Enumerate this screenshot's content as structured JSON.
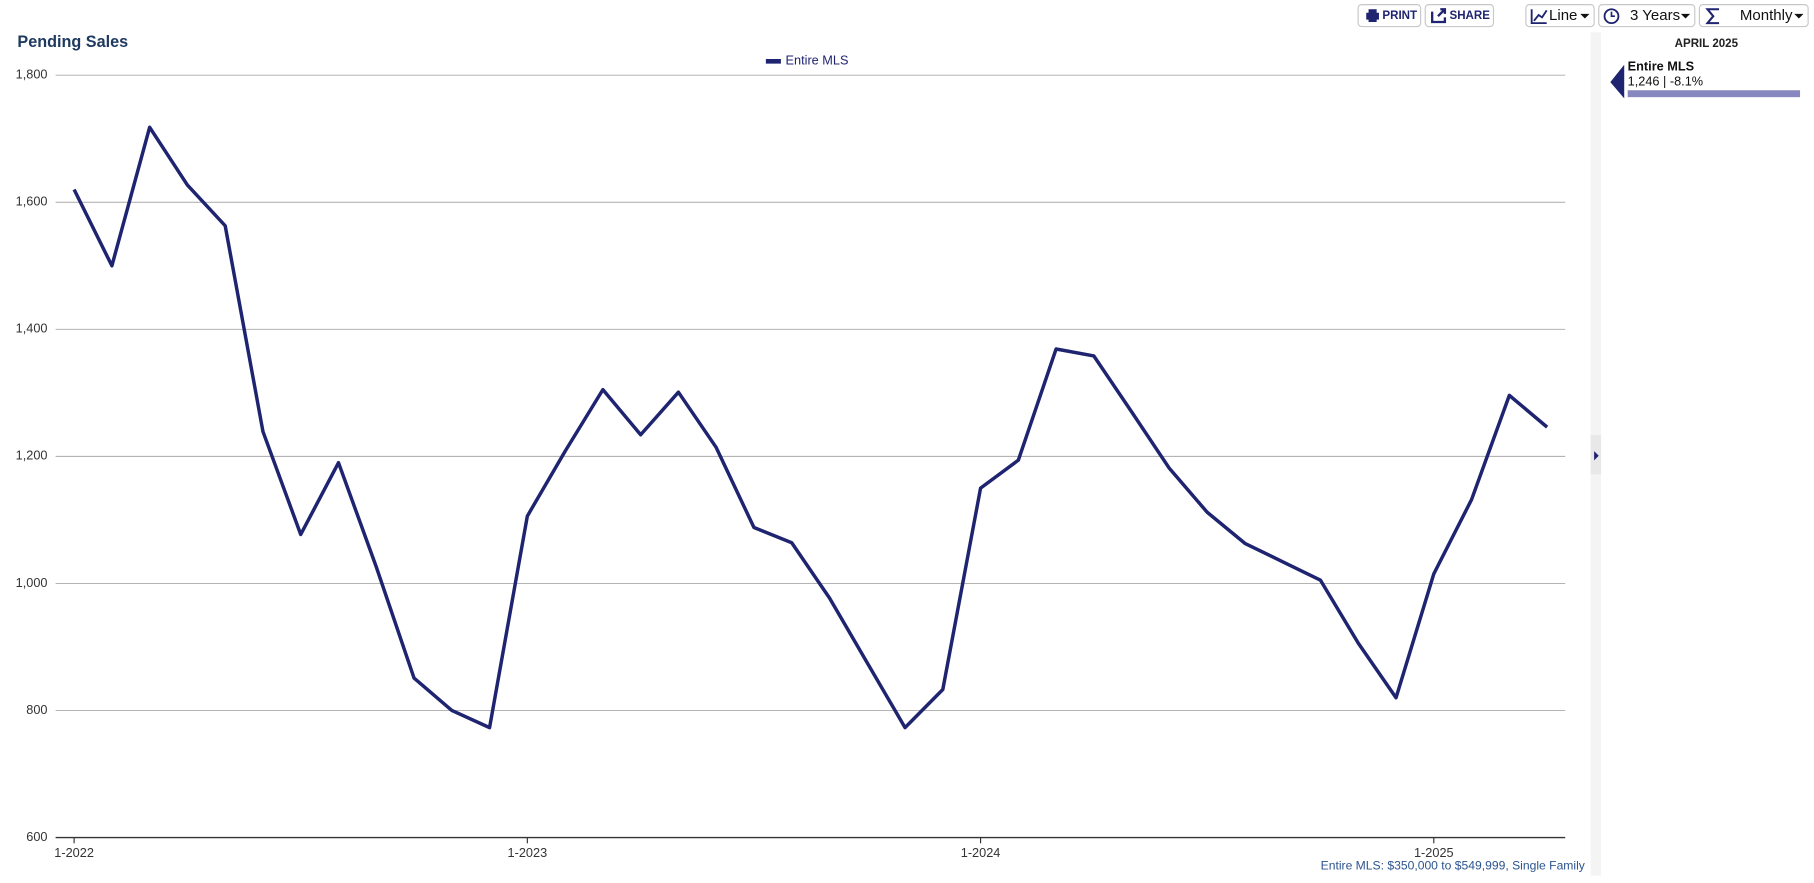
{
  "chart_data": {
    "type": "line",
    "title": "Pending Sales",
    "categories": [
      "1-2022",
      null,
      null,
      null,
      null,
      null,
      null,
      null,
      null,
      null,
      null,
      null,
      "1-2023",
      null,
      null,
      null,
      null,
      null,
      null,
      null,
      null,
      null,
      null,
      null,
      "1-2024",
      null,
      null,
      null,
      null,
      null,
      null,
      null,
      null,
      null,
      null,
      null,
      "1-2025",
      null,
      null,
      null
    ],
    "series": [
      {
        "name": "Entire MLS",
        "color": "#1f2470",
        "values": [
          1620,
          1500,
          1718,
          1627,
          1563,
          1239,
          1077,
          1190,
          1026,
          851,
          800,
          773,
          1106,
          1208,
          1305,
          1234,
          1301,
          1214,
          1088,
          1064,
          977,
          875,
          773,
          833,
          1150,
          1194,
          1369,
          1358,
          1270,
          1181,
          1112,
          1063,
          1034,
          1005,
          906,
          820,
          1015,
          1132,
          1296,
          1246
        ]
      }
    ],
    "ylim": [
      600,
      1800
    ],
    "yticks": [
      600,
      800,
      {
        "value": 1000,
        "label": "1,000"
      },
      {
        "value": 1200,
        "label": "1,200"
      },
      {
        "value": 1400,
        "label": "1,400"
      },
      {
        "value": 1600,
        "label": "1,600"
      },
      {
        "value": 1800,
        "label": "1,800"
      }
    ],
    "grid": true,
    "footnote": "Entire MLS: $350,000 to $549,999, Single Family"
  },
  "sidebar": {
    "period": "APRIL 2025",
    "summary": "1,246 | -8.1%"
  },
  "toolbar": {
    "print": "PRINT",
    "share": "SHARE",
    "chart_type": "Line",
    "range": "3 Years",
    "interval": "Monthly"
  }
}
